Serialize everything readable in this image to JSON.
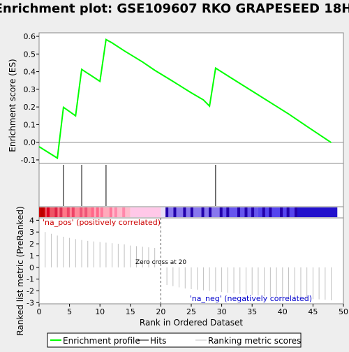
{
  "chart_data": {
    "type": "line",
    "title": "Enrichment plot: GSE109607 RKO GRAPESEED 18H",
    "colors": {
      "background": "#eeeeee",
      "panel": "#ffffff",
      "enrichment_line": "#00ff00",
      "hits": "#000000",
      "metric_line": "#c0c0c0",
      "zero_line": "#808080",
      "pos_label": "#cc0000",
      "neg_label": "#0000cc"
    },
    "top_panel": {
      "ylabel": "Enrichment score (ES)",
      "ylim": [
        -0.12,
        0.62
      ],
      "yticks": [
        -0.1,
        0.0,
        0.1,
        0.2,
        0.3,
        0.4,
        0.5,
        0.6
      ],
      "ytick_labels": [
        "-0.1",
        "0.0",
        "0.1",
        "0.2",
        "0.3",
        "0.4",
        "0.5",
        "0.6"
      ],
      "series": [
        {
          "name": "Enrichment profile",
          "x": [
            0,
            3,
            4,
            6,
            7,
            10,
            11,
            12,
            14,
            17,
            19,
            22,
            25,
            27,
            28,
            29,
            32,
            35,
            38,
            41,
            44,
            48
          ],
          "y": [
            -0.025,
            -0.09,
            0.198,
            0.15,
            0.413,
            0.345,
            0.582,
            0.563,
            0.518,
            0.455,
            0.408,
            0.345,
            0.28,
            0.24,
            0.205,
            0.42,
            0.355,
            0.29,
            0.225,
            0.16,
            0.09,
            -0.002
          ]
        }
      ]
    },
    "hits": [
      4,
      7,
      11,
      29
    ],
    "color_bar": {
      "bands": [
        {
          "from": 0,
          "to": 1,
          "color": "#cc0000"
        },
        {
          "from": 1,
          "to": 3,
          "color": "#ee5566"
        },
        {
          "from": 3,
          "to": 5,
          "color": "#ff7788"
        },
        {
          "from": 5,
          "to": 9,
          "color": "#ff8899"
        },
        {
          "from": 9,
          "to": 12,
          "color": "#ffaabb"
        },
        {
          "from": 12,
          "to": 15,
          "color": "#ffbbcc"
        },
        {
          "from": 15,
          "to": 20,
          "color": "#ffc8e8"
        },
        {
          "from": 20,
          "to": 21,
          "color": "#e8dff8"
        },
        {
          "from": 21,
          "to": 30,
          "color": "#8877ee"
        },
        {
          "from": 30,
          "to": 36,
          "color": "#6655ee"
        },
        {
          "from": 36,
          "to": 42,
          "color": "#5544ee"
        },
        {
          "from": 42,
          "to": 49,
          "color": "#2211cc"
        }
      ],
      "stripes": [
        {
          "x": 0.5,
          "color": "#bb0000"
        },
        {
          "x": 1.5,
          "color": "#dd0022"
        },
        {
          "x": 2.8,
          "color": "#dd2244"
        },
        {
          "x": 3.6,
          "color": "#dd3355"
        },
        {
          "x": 4.8,
          "color": "#ee4466"
        },
        {
          "x": 5.6,
          "color": "#ee4466"
        },
        {
          "x": 6.9,
          "color": "#ee5577"
        },
        {
          "x": 7.7,
          "color": "#ee5577"
        },
        {
          "x": 8.8,
          "color": "#ff6688"
        },
        {
          "x": 9.6,
          "color": "#ff6688"
        },
        {
          "x": 10.3,
          "color": "#ff7799"
        },
        {
          "x": 11.8,
          "color": "#ff7799"
        },
        {
          "x": 12.6,
          "color": "#ff88aa"
        },
        {
          "x": 13.9,
          "color": "#ff88aa"
        },
        {
          "x": 21.0,
          "color": "#2200aa"
        },
        {
          "x": 22.3,
          "color": "#2200aa"
        },
        {
          "x": 23.9,
          "color": "#2200aa"
        },
        {
          "x": 25.1,
          "color": "#2200aa"
        },
        {
          "x": 26.9,
          "color": "#2200aa"
        },
        {
          "x": 28.1,
          "color": "#2200aa"
        },
        {
          "x": 29.9,
          "color": "#2200aa"
        },
        {
          "x": 31.0,
          "color": "#2200aa"
        },
        {
          "x": 32.8,
          "color": "#2200aa"
        },
        {
          "x": 34.0,
          "color": "#2200aa"
        },
        {
          "x": 35.1,
          "color": "#2200aa"
        },
        {
          "x": 36.9,
          "color": "#2200aa"
        },
        {
          "x": 38.0,
          "color": "#2200aa"
        },
        {
          "x": 39.8,
          "color": "#2200aa"
        },
        {
          "x": 40.9,
          "color": "#2200aa"
        },
        {
          "x": 42.2,
          "color": "#2200aa"
        }
      ]
    },
    "bottom_panel": {
      "ylabel": "Ranked list metric (PreRanked)",
      "xlabel": "Rank in Ordered Dataset",
      "ylim": [
        -3.1,
        4.2
      ],
      "yticks": [
        -3,
        -2,
        -1,
        0,
        1,
        2,
        3,
        4
      ],
      "ytick_labels": [
        "-3",
        "-2",
        "-1",
        "0",
        "1",
        "2",
        "3",
        "4"
      ],
      "xlim": [
        0,
        50
      ],
      "xticks": [
        0,
        5,
        10,
        15,
        20,
        25,
        30,
        35,
        40,
        45,
        50
      ],
      "xtick_labels": [
        "0",
        "5",
        "10",
        "15",
        "20",
        "25",
        "30",
        "35",
        "40",
        "45",
        "50"
      ],
      "metric_x": [
        1,
        2,
        3,
        4,
        5,
        6,
        7,
        8,
        9,
        10,
        11,
        12,
        13,
        14,
        15,
        16,
        17,
        18,
        19,
        20,
        21,
        22,
        23,
        24,
        25,
        26,
        27,
        28,
        29,
        30,
        31,
        32,
        33,
        34,
        35,
        36,
        37,
        38,
        39,
        40,
        41,
        42,
        43,
        44,
        45,
        46,
        47,
        48
      ],
      "metric_values": [
        3.0,
        2.85,
        2.7,
        2.6,
        2.5,
        2.4,
        2.32,
        2.25,
        2.2,
        2.15,
        2.1,
        2.05,
        2.0,
        1.95,
        1.85,
        1.8,
        1.75,
        1.7,
        1.65,
        0.05,
        -1.5,
        -1.6,
        -1.7,
        -1.8,
        -1.85,
        -1.9,
        -1.95,
        -2.0,
        -2.05,
        -2.1,
        -2.15,
        -2.2,
        -2.25,
        -2.3,
        -2.35,
        -2.4,
        -2.45,
        -2.5,
        -2.5,
        -2.55,
        -2.6,
        -2.62,
        -2.65,
        -2.7,
        -2.7,
        -2.72,
        -2.75,
        -2.8
      ],
      "zero_cross_rank": 20,
      "zero_cross_label": "Zero cross at 20",
      "pos_label": "'na_pos' (positively correlated)",
      "neg_label": "'na_neg' (negatively correlated)"
    },
    "legend": [
      {
        "label": "Enrichment profile",
        "color": "#00ff00",
        "kind": "thick"
      },
      {
        "label": "Hits",
        "color": "#000000",
        "kind": "thin"
      },
      {
        "label": "Ranking metric scores",
        "color": "#c0c0c0",
        "kind": "thin"
      }
    ]
  }
}
